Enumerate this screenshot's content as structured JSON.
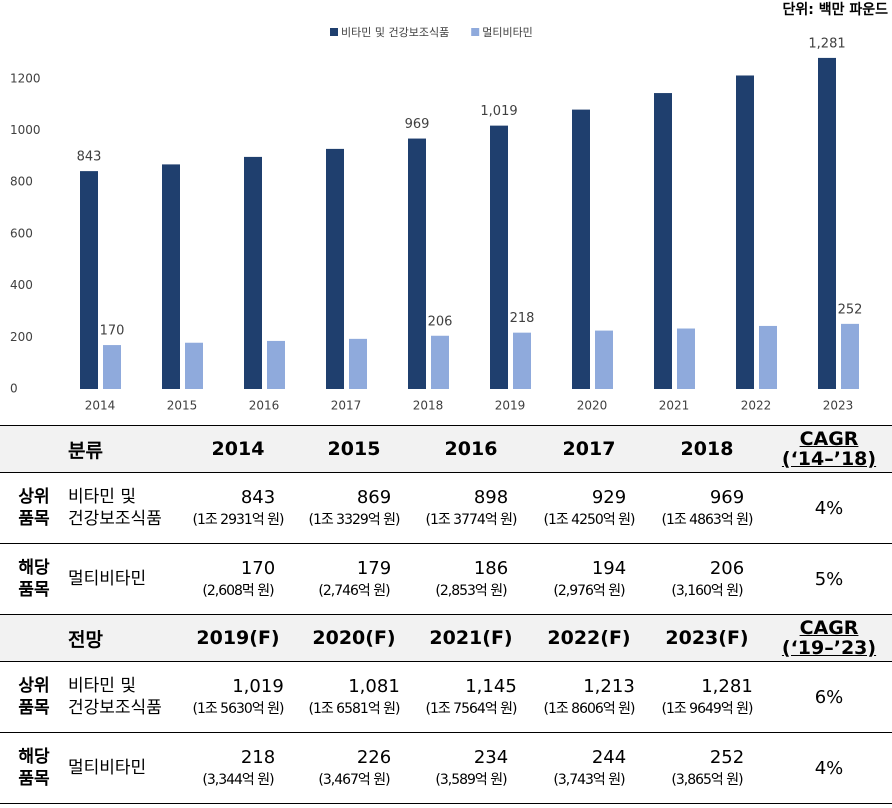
{
  "chart_data": {
    "type": "bar",
    "unit": "단위: 백만 파운드",
    "categories": [
      "2014",
      "2015",
      "2016",
      "2017",
      "2018",
      "2019",
      "2020",
      "2021",
      "2022",
      "2023"
    ],
    "series": [
      {
        "name": "비타민 및 건강보조식품",
        "color": "#1f3f6e",
        "values": [
          843,
          869,
          898,
          929,
          969,
          1019,
          1081,
          1145,
          1213,
          1281
        ],
        "value_labels": [
          "843",
          null,
          null,
          null,
          "969",
          "1,019",
          null,
          null,
          null,
          "1,281"
        ]
      },
      {
        "name": "멀티비타민",
        "color": "#8faadc",
        "values": [
          170,
          179,
          186,
          194,
          206,
          218,
          226,
          234,
          244,
          252
        ],
        "value_labels": [
          "170",
          null,
          null,
          null,
          "206",
          "218",
          null,
          null,
          null,
          "252"
        ]
      }
    ],
    "ylim": [
      0,
      1300
    ],
    "yticks": [
      0,
      200,
      400,
      600,
      800,
      1000,
      1200
    ],
    "legend": "top"
  },
  "table": {
    "sections": [
      {
        "header": [
          "분류",
          "2014",
          "2015",
          "2016",
          "2017",
          "2018"
        ],
        "cagr_header": [
          "CAGR",
          "(‘14–’18)"
        ],
        "rows": [
          {
            "group": [
              "상위",
              "품목"
            ],
            "item": [
              "비타민 및",
              "건강보조식품"
            ],
            "values": [
              [
                "843",
                "(1조 2931억 원)"
              ],
              [
                "869",
                "(1조 3329억 원)"
              ],
              [
                "898",
                "(1조 3774억 원)"
              ],
              [
                "929",
                "(1조 4250억 원)"
              ],
              [
                "969",
                "(1조 4863억 원)"
              ]
            ],
            "cagr": "4%"
          },
          {
            "group": [
              "해당",
              "품목"
            ],
            "item": [
              "멀티비타민"
            ],
            "values": [
              [
                "170",
                "(2,608먹 원)"
              ],
              [
                "179",
                "(2,746억 원)"
              ],
              [
                "186",
                "(2,853억 원)"
              ],
              [
                "194",
                "(2,976억 원)"
              ],
              [
                "206",
                "(3,160억 원)"
              ]
            ],
            "cagr": "5%"
          }
        ]
      },
      {
        "header": [
          "전망",
          "2019(F)",
          "2020(F)",
          "2021(F)",
          "2022(F)",
          "2023(F)"
        ],
        "cagr_header": [
          "CAGR",
          "(‘19–’23)"
        ],
        "rows": [
          {
            "group": [
              "상위",
              "품목"
            ],
            "item": [
              "비타민 및",
              "건강보조식품"
            ],
            "values": [
              [
                "1,019",
                "(1조 5630억 원)"
              ],
              [
                "1,081",
                "(1조 6581억 원)"
              ],
              [
                "1,145",
                "(1조 7564억 원)"
              ],
              [
                "1,213",
                "(1조 8606억 원)"
              ],
              [
                "1,281",
                "(1조 9649억 원)"
              ]
            ],
            "cagr": "6%"
          },
          {
            "group": [
              "해당",
              "품목"
            ],
            "item": [
              "멀티비타민"
            ],
            "values": [
              [
                "218",
                "(3,344억 원)"
              ],
              [
                "226",
                "(3,467억 원)"
              ],
              [
                "234",
                "(3,589억 원)"
              ],
              [
                "244",
                "(3,743억 원)"
              ],
              [
                "252",
                "(3,865억 원)"
              ]
            ],
            "cagr": "4%"
          }
        ]
      }
    ]
  }
}
